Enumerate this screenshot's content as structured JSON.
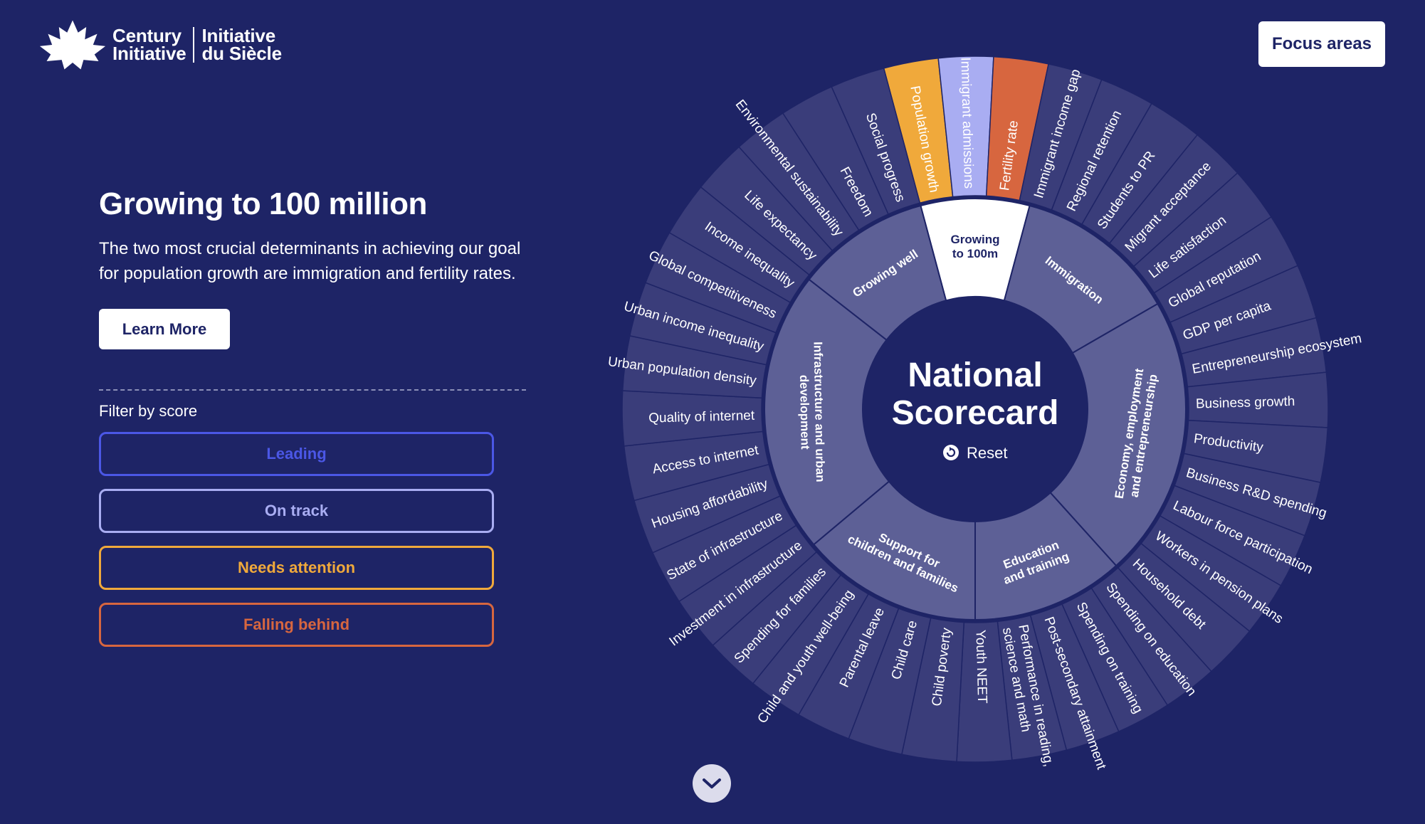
{
  "brand": {
    "line1": "Century",
    "line2": "Initiative",
    "line3": "Initiative",
    "line4": "du Siècle"
  },
  "header": {
    "focus_label": "Focus areas"
  },
  "intro": {
    "title": "Growing to 100 million",
    "body": "The two most crucial determinants in achieving our goal for population growth are immigration and fertility rates.",
    "learn_more": "Learn More"
  },
  "filter": {
    "label": "Filter by score",
    "options": [
      {
        "label": "Leading",
        "color": "#4b57e6"
      },
      {
        "label": "On track",
        "color": "#a9adf2"
      },
      {
        "label": "Needs attention",
        "color": "#f0a93b"
      },
      {
        "label": "Falling behind",
        "color": "#d7663f"
      }
    ]
  },
  "wheel": {
    "center_line1": "National",
    "center_line2": "Scorecard",
    "reset_label": "Reset",
    "colors": {
      "background": "#1e2466",
      "outer": "#3a3d7a",
      "inner": "#5d6096",
      "center": "#1e2466",
      "highlight": "#ffffff"
    },
    "categories": [
      {
        "name": "Growing to 100m",
        "lines": [
          "Growing",
          "to 100m"
        ],
        "start": -15,
        "end": 15,
        "highlight": true
      },
      {
        "name": "Immigration",
        "lines": [
          "Immigration"
        ],
        "start": 15,
        "end": 60
      },
      {
        "name": "Economy, employment and entrepreneurship",
        "lines": [
          "Economy, employment",
          "and entrepreneurship"
        ],
        "start": 60,
        "end": 138
      },
      {
        "name": "Education and training",
        "lines": [
          "Education",
          "and training"
        ],
        "start": 138,
        "end": 180
      },
      {
        "name": "Support for children and families",
        "lines": [
          "Support for",
          "children and families"
        ],
        "start": 180,
        "end": 230
      },
      {
        "name": "Infrastructure and urban development",
        "lines": [
          "Infrastructure and urban",
          "development"
        ],
        "start": 230,
        "end": 308
      },
      {
        "name": "Growing well",
        "lines": [
          "Growing well"
        ],
        "start": 308,
        "end": 345
      }
    ],
    "indicators": [
      {
        "lines": [
          "Population growth"
        ],
        "fill": "#f0a93b"
      },
      {
        "lines": [
          "Immigrant admissions"
        ],
        "fill": "#a9adf2"
      },
      {
        "lines": [
          "Fertility rate"
        ],
        "fill": "#d7663f"
      },
      {
        "lines": [
          "Immigrant income gap"
        ]
      },
      {
        "lines": [
          "Regional retention"
        ]
      },
      {
        "lines": [
          "Students to PR"
        ]
      },
      {
        "lines": [
          "Migrant acceptance"
        ]
      },
      {
        "lines": [
          "Life satisfaction"
        ]
      },
      {
        "lines": [
          "Global reputation"
        ]
      },
      {
        "lines": [
          "GDP per capita"
        ]
      },
      {
        "lines": [
          "Entrepreneurship ecosystem"
        ]
      },
      {
        "lines": [
          "Business growth"
        ]
      },
      {
        "lines": [
          "Productivity"
        ]
      },
      {
        "lines": [
          "Business R&D spending"
        ]
      },
      {
        "lines": [
          "Labour force participation"
        ]
      },
      {
        "lines": [
          "Workers in pension plans"
        ]
      },
      {
        "lines": [
          "Household debt"
        ]
      },
      {
        "lines": [
          "Spending on education"
        ]
      },
      {
        "lines": [
          "Spending on training"
        ]
      },
      {
        "lines": [
          "Post-secondary attainment"
        ]
      },
      {
        "lines": [
          "Performance in reading,",
          "science and math"
        ]
      },
      {
        "lines": [
          "Youth NEET"
        ]
      },
      {
        "lines": [
          "Child poverty"
        ]
      },
      {
        "lines": [
          "Child care"
        ]
      },
      {
        "lines": [
          "Parental leave"
        ]
      },
      {
        "lines": [
          "Child and youth well-being"
        ]
      },
      {
        "lines": [
          "Spending for families"
        ]
      },
      {
        "lines": [
          "Investment in infrastructure"
        ]
      },
      {
        "lines": [
          "State of infrastructure"
        ]
      },
      {
        "lines": [
          "Housing affordability"
        ]
      },
      {
        "lines": [
          "Access to internet"
        ]
      },
      {
        "lines": [
          "Quality of internet"
        ]
      },
      {
        "lines": [
          "Urban population density"
        ]
      },
      {
        "lines": [
          "Urban income inequality"
        ]
      },
      {
        "lines": [
          "Global competitiveness"
        ]
      },
      {
        "lines": [
          "Income inequality"
        ]
      },
      {
        "lines": [
          "Life expectancy"
        ]
      },
      {
        "lines": [
          "Environmental sustainability"
        ]
      },
      {
        "lines": [
          "Freedom"
        ]
      },
      {
        "lines": [
          "Social progress"
        ]
      }
    ]
  }
}
